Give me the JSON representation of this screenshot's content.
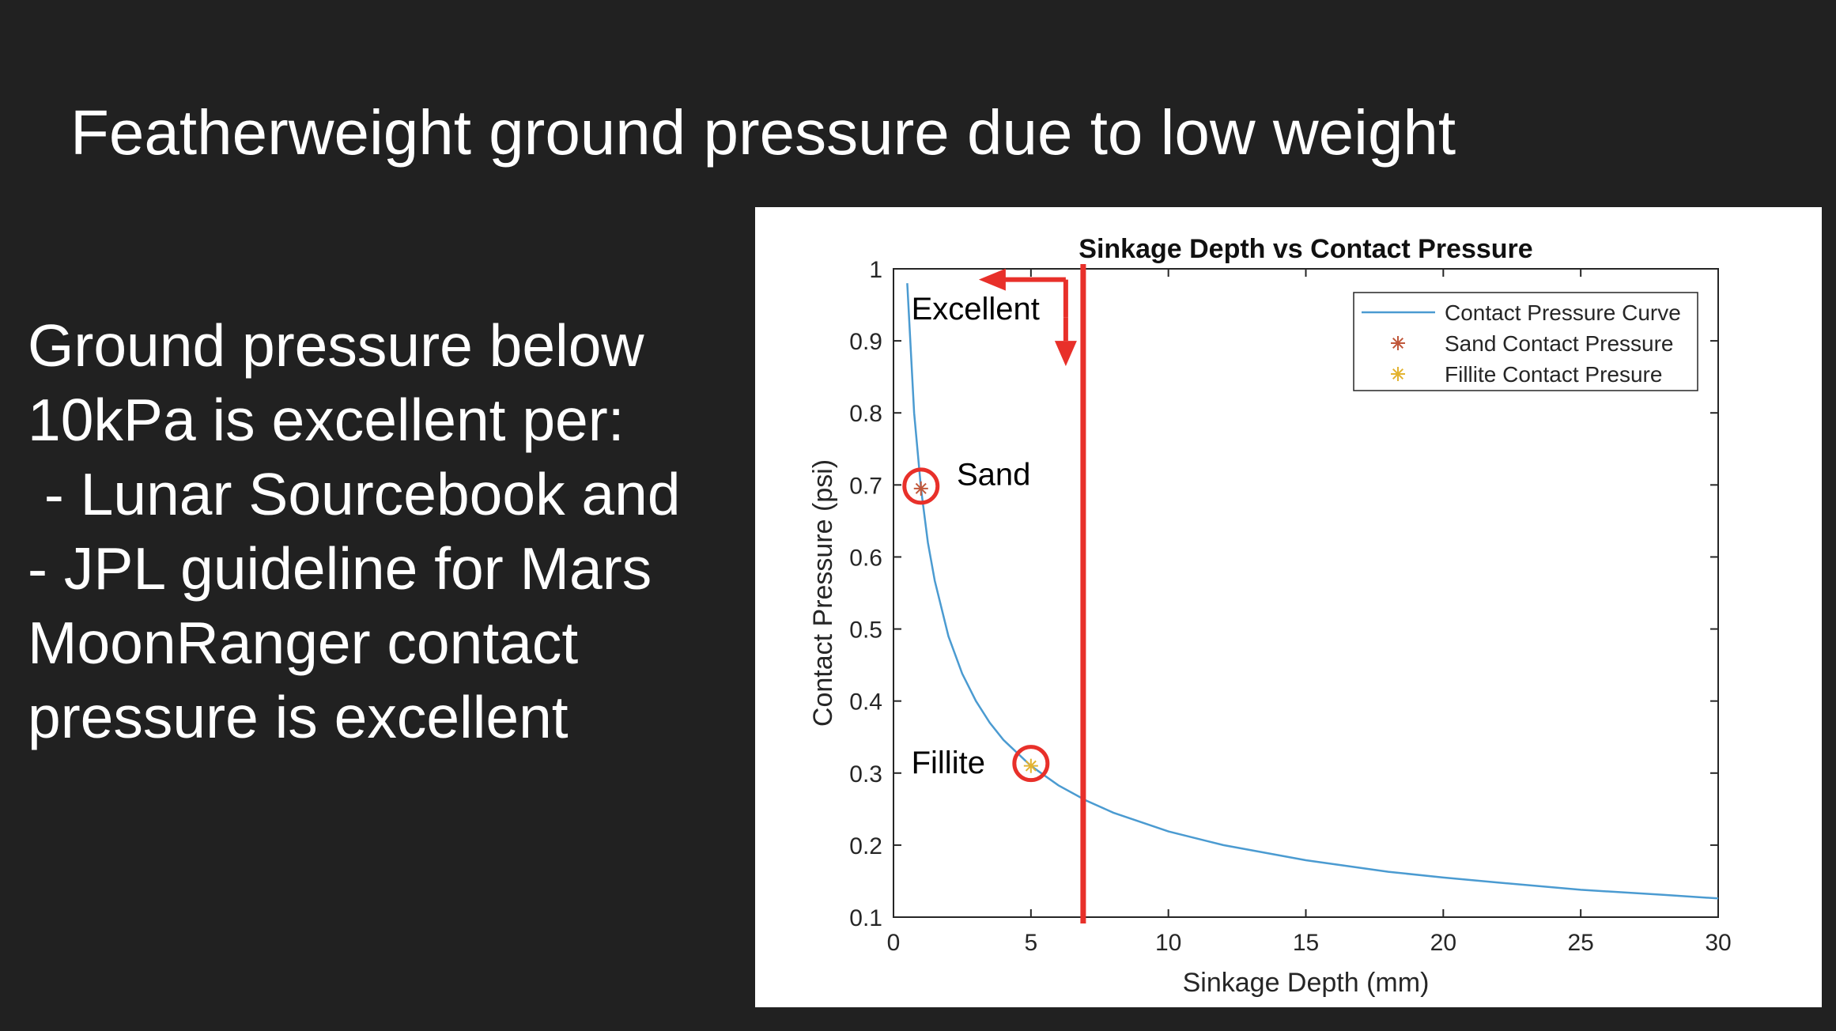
{
  "slide": {
    "title": "Featherweight ground pressure due to low weight",
    "body_lines": [
      "Ground pressure below",
      "10kPa is excellent per:",
      " - Lunar Sourcebook and",
      "- JPL guideline for Mars",
      "",
      "MoonRanger contact",
      "pressure is excellent"
    ]
  },
  "chart_data": {
    "type": "line",
    "title": "Sinkage Depth vs Contact Pressure",
    "xlabel": "Sinkage Depth (mm)",
    "ylabel": "Contact Pressure (psi)",
    "xlim": [
      0,
      30
    ],
    "ylim": [
      0.1,
      1
    ],
    "xticks": [
      0,
      5,
      10,
      15,
      20,
      25,
      30
    ],
    "yticks": [
      0.1,
      0.2,
      0.3,
      0.4,
      0.5,
      0.6,
      0.7,
      0.8,
      0.9,
      1
    ],
    "grid": false,
    "legend_position": "top-right",
    "curve": {
      "name": "Contact Pressure Curve",
      "color": "#4b9bd1",
      "x": [
        0.5,
        0.75,
        1,
        1.25,
        1.5,
        2,
        2.5,
        3,
        3.5,
        4,
        5,
        6,
        7,
        8,
        10,
        12,
        15,
        18,
        20,
        22,
        25,
        28,
        30
      ],
      "y": [
        0.98,
        0.8,
        0.695,
        0.62,
        0.567,
        0.49,
        0.438,
        0.4,
        0.37,
        0.346,
        0.31,
        0.283,
        0.262,
        0.245,
        0.219,
        0.2,
        0.179,
        0.163,
        0.155,
        0.148,
        0.138,
        0.131,
        0.126
      ]
    },
    "points": [
      {
        "name": "Sand Contact Pressure",
        "x": 1,
        "y": 0.695,
        "color": "#c0573a"
      },
      {
        "name": "Fillite Contact Presure",
        "x": 5,
        "y": 0.31,
        "color": "#e3b330"
      }
    ],
    "annotations": {
      "excellent_label": "Excellent",
      "sand_label": "Sand",
      "fillite_label": "Fillite",
      "threshold_x": 6.9,
      "annotation_color": "#e8302a"
    }
  }
}
